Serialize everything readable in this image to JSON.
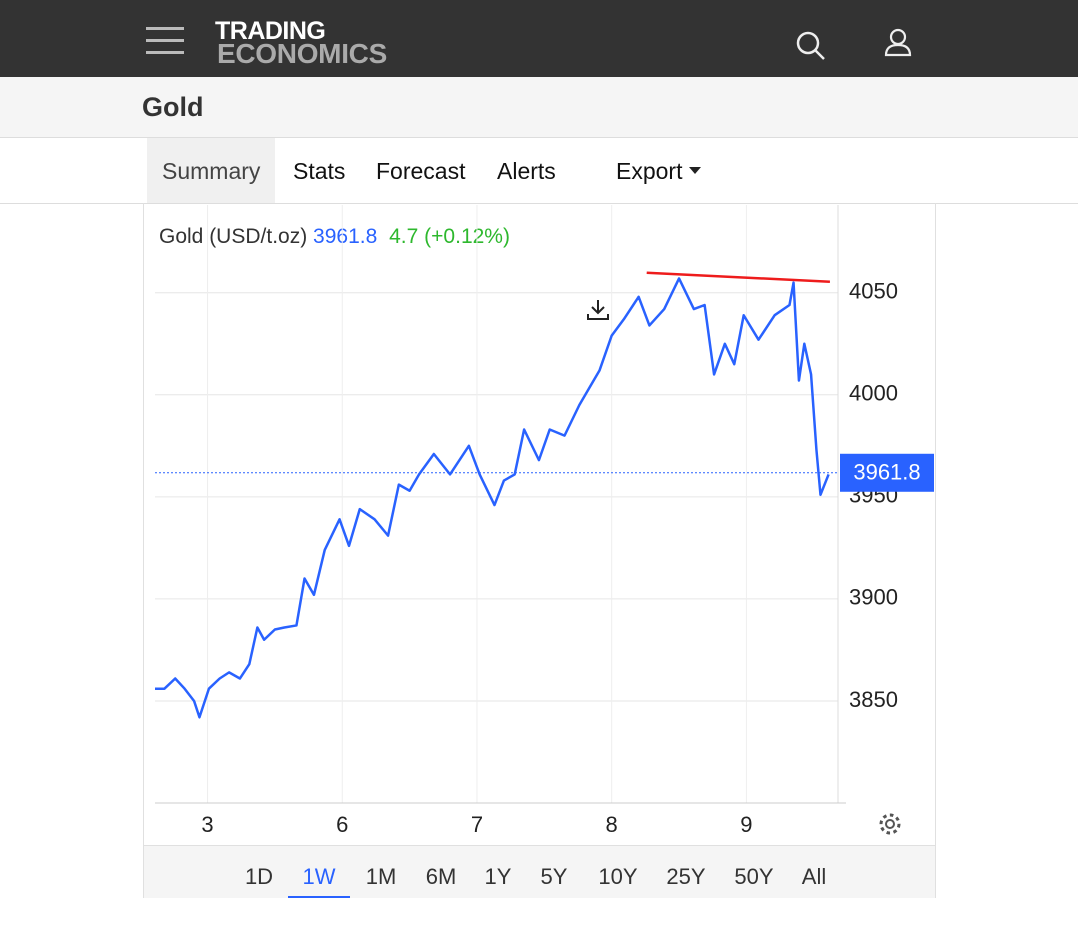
{
  "header": {
    "logo_top": "TRADING",
    "logo_bottom": "ECONOMICS"
  },
  "page_title": "Gold",
  "tabs": [
    "Summary",
    "Stats",
    "Forecast",
    "Alerts",
    "Export"
  ],
  "ranges": [
    "1D",
    "1W",
    "1M",
    "6M",
    "1Y",
    "5Y",
    "10Y",
    "25Y",
    "50Y",
    "All"
  ],
  "chart_data": {
    "type": "line",
    "title": "Gold (USD/t.oz)",
    "last_value": 3961.8,
    "change": 4.7,
    "change_pct": "(+0.12%)",
    "x": [
      -0.39,
      -0.32,
      -0.24,
      -0.17,
      -0.1,
      -0.06,
      0.01,
      0.09,
      0.16,
      0.24,
      0.31,
      0.37,
      0.42,
      0.5,
      0.57,
      0.66,
      0.72,
      0.79,
      0.87,
      0.98,
      1.05,
      1.13,
      1.24,
      1.34,
      1.42,
      1.5,
      1.57,
      1.68,
      1.8,
      1.94,
      2.02,
      2.13,
      2.2,
      2.28,
      2.35,
      2.46,
      2.54,
      2.65,
      2.76,
      2.91,
      3.0,
      3.09,
      3.2,
      3.28,
      3.39,
      3.5,
      3.61,
      3.69,
      3.76,
      3.84,
      3.91,
      3.98,
      4.09,
      4.21,
      4.32,
      4.35,
      4.39,
      4.43,
      4.48,
      4.52,
      4.55,
      4.61
    ],
    "series": [
      {
        "name": "Gold",
        "color": "#2962ff",
        "values": [
          3856,
          3856,
          3861,
          3856,
          3850,
          3842,
          3856,
          3861,
          3864,
          3861,
          3868,
          3886,
          3880,
          3885,
          3886,
          3887,
          3910,
          3902,
          3924,
          3939,
          3926,
          3944,
          3939,
          3931,
          3956,
          3953,
          3961,
          3971,
          3961,
          3975,
          3961,
          3946,
          3958,
          3961,
          3983,
          3968,
          3983,
          3980,
          3995,
          4012,
          4029,
          4037,
          4048,
          4034,
          4042,
          4057,
          4042,
          4044,
          4010,
          4025,
          4015,
          4039,
          4027,
          4039,
          4044,
          4055,
          4007,
          4025,
          4010,
          3973,
          3951,
          3961
        ]
      }
    ],
    "trendline": {
      "color": "#ee1c1c",
      "x": [
        3.26,
        4.62
      ],
      "values": [
        4059.8,
        4055.4
      ]
    },
    "xlim": [
      -0.39,
      4.68
    ],
    "xticks": [
      {
        "value": 0,
        "label": "3"
      },
      {
        "value": 1,
        "label": "6"
      },
      {
        "value": 2,
        "label": "7"
      },
      {
        "value": 3,
        "label": "8"
      },
      {
        "value": 4,
        "label": "9"
      }
    ],
    "ylim": [
      3800,
      4093
    ],
    "yticks": [
      3850,
      3900,
      3950,
      4000,
      4050
    ],
    "grid": true
  }
}
